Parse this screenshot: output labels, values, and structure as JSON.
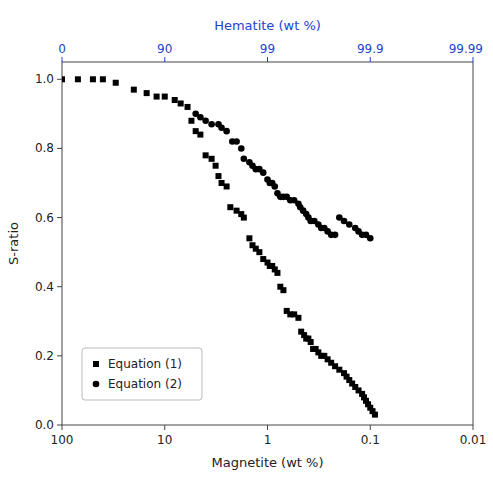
{
  "chart_data": {
    "type": "scatter",
    "xlabel": "Magnetite (wt %)",
    "x2label": "Hematite (wt %)",
    "ylabel": "S-ratio",
    "log": "x",
    "xlim": [
      100,
      0.01
    ],
    "xticks": [
      100,
      10,
      1,
      0.1,
      0.01
    ],
    "x2lim": [
      100,
      0.01
    ],
    "x2ticks": [
      {
        "value": 100,
        "label": "0"
      },
      {
        "value": 10,
        "label": "90"
      },
      {
        "value": 1,
        "label": "99"
      },
      {
        "value": 0.1,
        "label": "99.9"
      },
      {
        "value": 0.01,
        "label": "99.99"
      }
    ],
    "x2color": "#2244cc",
    "ylim": [
      0.0,
      1.05
    ],
    "yticks": [
      {
        "value": 0.0,
        "label": "0.0"
      },
      0.2,
      0.4,
      0.6,
      0.8,
      {
        "value": 1.0,
        "label": "1.0"
      }
    ],
    "legend": "lower left",
    "series": [
      {
        "name": "Equation (1)",
        "color": "#000000",
        "marker": "square",
        "x": [
          100,
          70,
          50,
          40,
          30,
          20,
          15,
          12,
          10,
          8,
          7,
          6,
          5.5,
          5,
          4.5,
          4,
          3.5,
          3.2,
          3.0,
          2.8,
          2.5,
          2.3,
          2.0,
          1.8,
          1.7,
          1.5,
          1.4,
          1.3,
          1.2,
          1.1,
          1.0,
          0.95,
          0.9,
          0.85,
          0.8,
          0.75,
          0.7,
          0.65,
          0.6,
          0.55,
          0.5,
          0.47,
          0.44,
          0.42,
          0.4,
          0.38,
          0.36,
          0.34,
          0.32,
          0.3,
          0.28,
          0.26,
          0.24,
          0.22,
          0.2,
          0.18,
          0.17,
          0.16,
          0.15,
          0.14,
          0.13,
          0.12,
          0.115,
          0.11,
          0.105,
          0.1,
          0.095,
          0.09
        ],
        "values": [
          1.0,
          1.0,
          1.0,
          1.0,
          0.99,
          0.97,
          0.96,
          0.95,
          0.95,
          0.94,
          0.93,
          0.92,
          0.88,
          0.85,
          0.84,
          0.78,
          0.77,
          0.75,
          0.72,
          0.7,
          0.69,
          0.63,
          0.62,
          0.61,
          0.6,
          0.54,
          0.52,
          0.51,
          0.5,
          0.48,
          0.47,
          0.46,
          0.46,
          0.45,
          0.44,
          0.4,
          0.39,
          0.33,
          0.32,
          0.32,
          0.31,
          0.27,
          0.26,
          0.25,
          0.25,
          0.24,
          0.22,
          0.22,
          0.21,
          0.2,
          0.2,
          0.19,
          0.18,
          0.17,
          0.16,
          0.15,
          0.14,
          0.13,
          0.12,
          0.11,
          0.1,
          0.09,
          0.08,
          0.07,
          0.06,
          0.05,
          0.04,
          0.03
        ]
      },
      {
        "name": "Equation (2)",
        "color": "#000000",
        "marker": "circle",
        "x": [
          5.0,
          4.5,
          4.0,
          3.5,
          3.0,
          2.8,
          2.5,
          2.2,
          2.0,
          1.8,
          1.7,
          1.5,
          1.4,
          1.3,
          1.2,
          1.1,
          1.0,
          0.95,
          0.9,
          0.85,
          0.8,
          0.75,
          0.7,
          0.65,
          0.6,
          0.55,
          0.5,
          0.48,
          0.45,
          0.42,
          0.4,
          0.38,
          0.35,
          0.32,
          0.3,
          0.28,
          0.26,
          0.24,
          0.22,
          0.2,
          0.18,
          0.16,
          0.14,
          0.13,
          0.12,
          0.11,
          0.1
        ],
        "values": [
          0.9,
          0.89,
          0.88,
          0.87,
          0.87,
          0.86,
          0.85,
          0.82,
          0.82,
          0.8,
          0.77,
          0.76,
          0.75,
          0.74,
          0.74,
          0.73,
          0.71,
          0.7,
          0.7,
          0.69,
          0.67,
          0.66,
          0.66,
          0.66,
          0.65,
          0.65,
          0.64,
          0.63,
          0.62,
          0.61,
          0.6,
          0.59,
          0.59,
          0.58,
          0.57,
          0.57,
          0.56,
          0.55,
          0.55,
          0.6,
          0.59,
          0.58,
          0.57,
          0.56,
          0.55,
          0.55,
          0.54
        ]
      }
    ]
  }
}
